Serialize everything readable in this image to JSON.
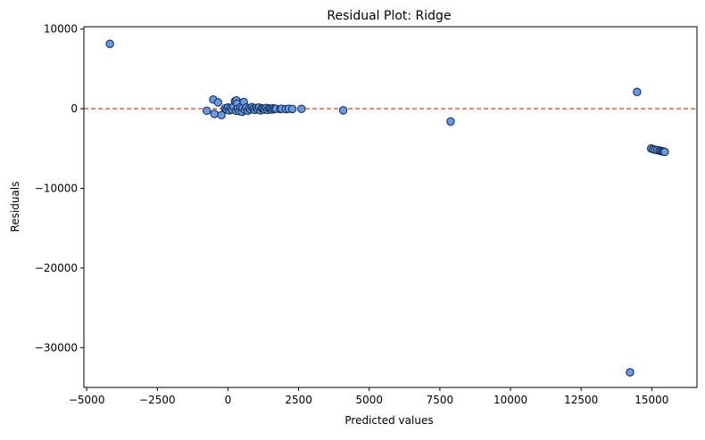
{
  "chart_data": {
    "type": "scatter",
    "title": "Residual Plot: Ridge",
    "xlabel": "Predicted values",
    "ylabel": "Residuals",
    "xlim": [
      -5100,
      16600
    ],
    "ylim": [
      -35000,
      10300
    ],
    "xticks": [
      -5000,
      -2500,
      0,
      2500,
      5000,
      7500,
      10000,
      12500,
      15000
    ],
    "xtick_labels": [
      "−5000",
      "−2500",
      "0",
      "2500",
      "5000",
      "7500",
      "10000",
      "12500",
      "15000"
    ],
    "yticks": [
      10000,
      0,
      -10000,
      -20000,
      -30000
    ],
    "ytick_labels": [
      "10000",
      "0",
      "−10000",
      "−20000",
      "−30000"
    ],
    "grid": false,
    "reference_line": {
      "y": 0,
      "style": "dashed",
      "color": "#e4553a"
    },
    "marker_color": "#6a9be0",
    "marker_edge_color": "#15305e",
    "points": [
      {
        "x": -4180,
        "y": 8150
      },
      {
        "x": -750,
        "y": -250
      },
      {
        "x": -520,
        "y": 1150
      },
      {
        "x": -350,
        "y": 800
      },
      {
        "x": -480,
        "y": -650
      },
      {
        "x": -230,
        "y": -800
      },
      {
        "x": -100,
        "y": 50
      },
      {
        "x": -50,
        "y": -100
      },
      {
        "x": 0,
        "y": 150
      },
      {
        "x": 50,
        "y": -200
      },
      {
        "x": 100,
        "y": 100
      },
      {
        "x": 150,
        "y": -100
      },
      {
        "x": 200,
        "y": 250
      },
      {
        "x": 250,
        "y": 950
      },
      {
        "x": 280,
        "y": -250
      },
      {
        "x": 300,
        "y": 1050
      },
      {
        "x": 320,
        "y": 650
      },
      {
        "x": 350,
        "y": 0
      },
      {
        "x": 400,
        "y": -300
      },
      {
        "x": 450,
        "y": 200
      },
      {
        "x": 500,
        "y": -400
      },
      {
        "x": 520,
        "y": 100
      },
      {
        "x": 560,
        "y": 850
      },
      {
        "x": 600,
        "y": -150
      },
      {
        "x": 650,
        "y": 150
      },
      {
        "x": 700,
        "y": -250
      },
      {
        "x": 750,
        "y": 50
      },
      {
        "x": 800,
        "y": -100
      },
      {
        "x": 850,
        "y": 200
      },
      {
        "x": 900,
        "y": 0
      },
      {
        "x": 950,
        "y": -150
      },
      {
        "x": 1000,
        "y": 100
      },
      {
        "x": 1050,
        "y": -50
      },
      {
        "x": 1100,
        "y": 150
      },
      {
        "x": 1150,
        "y": -200
      },
      {
        "x": 1200,
        "y": 50
      },
      {
        "x": 1250,
        "y": 0
      },
      {
        "x": 1300,
        "y": -100
      },
      {
        "x": 1350,
        "y": 100
      },
      {
        "x": 1400,
        "y": -150
      },
      {
        "x": 1450,
        "y": 50
      },
      {
        "x": 1500,
        "y": 0
      },
      {
        "x": 1550,
        "y": -100
      },
      {
        "x": 1600,
        "y": 50
      },
      {
        "x": 1650,
        "y": -50
      },
      {
        "x": 1700,
        "y": 0
      },
      {
        "x": 1850,
        "y": -50
      },
      {
        "x": 1900,
        "y": 0
      },
      {
        "x": 2050,
        "y": -50
      },
      {
        "x": 2150,
        "y": 0
      },
      {
        "x": 2280,
        "y": -30
      },
      {
        "x": 2600,
        "y": -20
      },
      {
        "x": 4080,
        "y": -200
      },
      {
        "x": 7880,
        "y": -1600
      },
      {
        "x": 14230,
        "y": -33100
      },
      {
        "x": 14480,
        "y": 2100
      },
      {
        "x": 14980,
        "y": -5000
      },
      {
        "x": 15050,
        "y": -5100
      },
      {
        "x": 15120,
        "y": -5150
      },
      {
        "x": 15200,
        "y": -5200
      },
      {
        "x": 15280,
        "y": -5250
      },
      {
        "x": 15330,
        "y": -5300
      },
      {
        "x": 15380,
        "y": -5350
      },
      {
        "x": 15420,
        "y": -5380
      },
      {
        "x": 15460,
        "y": -5420
      }
    ]
  }
}
